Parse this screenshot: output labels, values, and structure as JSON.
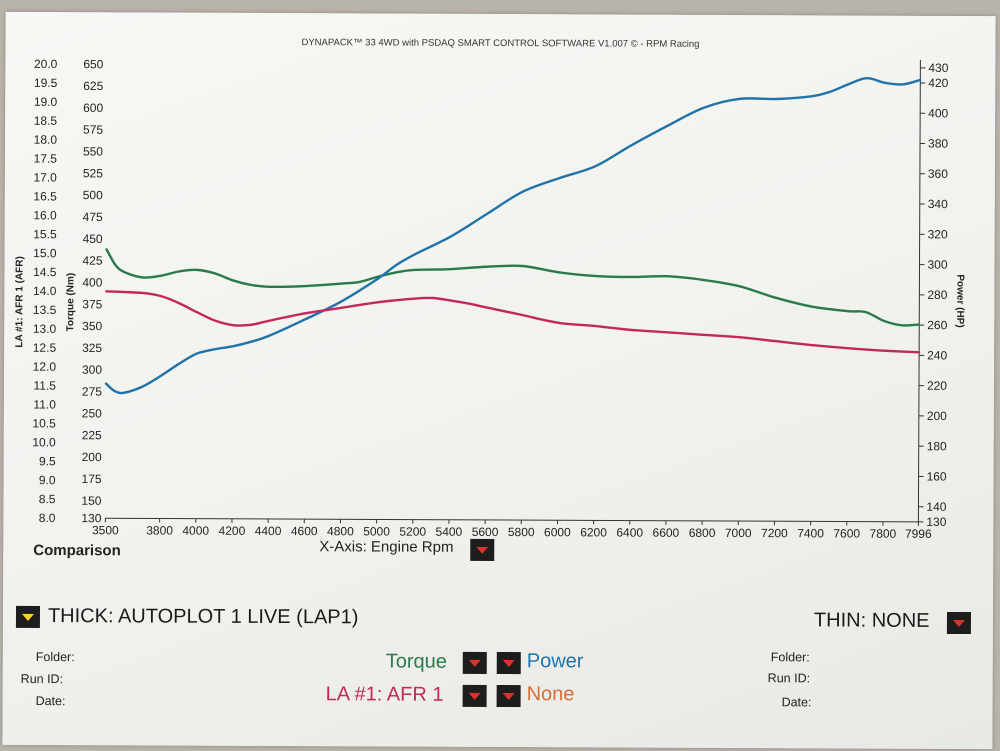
{
  "header": {
    "title": "DYNAPACK™ 33 4WD with PSDAQ SMART CONTROL SOFTWARE V1.007 © - RPM Racing"
  },
  "labels": {
    "comparison": "Comparison",
    "x_axis": "X-Axis: Engine Rpm",
    "thick": "THICK: AUTOPLOT 1 LIVE (LAP1)",
    "thin": "THIN: NONE",
    "folder": "Folder:",
    "run_id": "Run ID:",
    "date": "Date:",
    "sel_torque": "Torque",
    "sel_power": "Power",
    "sel_afr": "LA #1: AFR 1",
    "sel_none": "None"
  },
  "colors": {
    "torque": "#2a7a4b",
    "power": "#1f73a8",
    "afr": "#c2285a",
    "none": "#d96d32"
  },
  "chart_data": {
    "type": "line",
    "title": "DYNAPACK™ 33 4WD with PSDAQ SMART CONTROL SOFTWARE V1.007 © - RPM Racing",
    "xlabel": "X-Axis: Engine Rpm",
    "xlim": [
      3500,
      7996
    ],
    "x_ticks": [
      3500,
      3800,
      4000,
      4200,
      4400,
      4600,
      4800,
      5000,
      5200,
      5400,
      5600,
      5800,
      6000,
      6200,
      6400,
      6600,
      6800,
      7000,
      7200,
      7400,
      7600,
      7800,
      7996
    ],
    "axes": {
      "afr": {
        "label": "LA #1: AFR 1 (AFR)",
        "lim": [
          8.0,
          20.0
        ],
        "ticks": [
          "8.0",
          "8.5",
          "9.0",
          "9.5",
          "10.0",
          "10.5",
          "11.0",
          "11.5",
          "12.0",
          "12.5",
          "13.0",
          "13.5",
          "14.0",
          "14.5",
          "15.0",
          "15.5",
          "16.0",
          "16.5",
          "17.0",
          "17.5",
          "18.0",
          "18.5",
          "19.0",
          "19.5",
          "20.0"
        ]
      },
      "torque": {
        "label": "Torque (Nm)",
        "lim": [
          130,
          650
        ],
        "ticks": [
          "130",
          "150",
          "175",
          "200",
          "225",
          "250",
          "275",
          "300",
          "325",
          "350",
          "375",
          "400",
          "425",
          "450",
          "475",
          "500",
          "525",
          "550",
          "575",
          "600",
          "625",
          "650"
        ]
      },
      "power": {
        "label": "Power (HP)",
        "lim": [
          130,
          430
        ],
        "ticks": [
          "130",
          "140",
          "160",
          "180",
          "200",
          "220",
          "240",
          "260",
          "280",
          "300",
          "320",
          "340",
          "360",
          "380",
          "400",
          "420",
          "430"
        ]
      }
    },
    "series": [
      {
        "name": "Torque",
        "axis": "torque",
        "x": [
          3500,
          3550,
          3600,
          3700,
          3800,
          3900,
          4000,
          4100,
          4200,
          4300,
          4400,
          4600,
          4800,
          4900,
          5000,
          5100,
          5200,
          5400,
          5600,
          5800,
          6000,
          6200,
          6400,
          6600,
          6800,
          7000,
          7200,
          7400,
          7600,
          7700,
          7800,
          7900,
          7996
        ],
        "y": [
          438,
          420,
          412,
          406,
          408,
          413,
          415,
          411,
          403,
          398,
          396,
          397,
          400,
          402,
          408,
          413,
          416,
          417,
          420,
          421,
          414,
          410,
          409,
          410,
          406,
          399,
          386,
          376,
          371,
          370,
          360,
          355,
          356
        ]
      },
      {
        "name": "Power",
        "axis": "power",
        "x": [
          3500,
          3550,
          3600,
          3700,
          3800,
          3900,
          4000,
          4100,
          4200,
          4300,
          4400,
          4600,
          4800,
          5000,
          5100,
          5200,
          5400,
          5600,
          5800,
          6000,
          6200,
          6400,
          6600,
          6800,
          7000,
          7200,
          7400,
          7500,
          7600,
          7700,
          7800,
          7900,
          7996
        ],
        "y": [
          219,
          214,
          213,
          217,
          224,
          232,
          239,
          242,
          244,
          247,
          251,
          262,
          274,
          289,
          298,
          305,
          317,
          332,
          347,
          356,
          364,
          378,
          391,
          403,
          409,
          409,
          411,
          414,
          419,
          423,
          420,
          419,
          422
        ]
      },
      {
        "name": "LA #1: AFR 1",
        "axis": "afr",
        "x": [
          3500,
          3700,
          3800,
          3900,
          4000,
          4100,
          4200,
          4300,
          4400,
          4600,
          4800,
          5000,
          5200,
          5300,
          5400,
          5500,
          5600,
          5800,
          6000,
          6200,
          6400,
          6600,
          6800,
          7000,
          7200,
          7400,
          7600,
          7800,
          7996
        ],
        "y": [
          14.0,
          13.96,
          13.88,
          13.7,
          13.46,
          13.24,
          13.12,
          13.13,
          13.24,
          13.44,
          13.59,
          13.74,
          13.84,
          13.86,
          13.8,
          13.72,
          13.62,
          13.42,
          13.22,
          13.14,
          13.04,
          12.98,
          12.92,
          12.86,
          12.76,
          12.66,
          12.58,
          12.52,
          12.48
        ]
      }
    ]
  }
}
